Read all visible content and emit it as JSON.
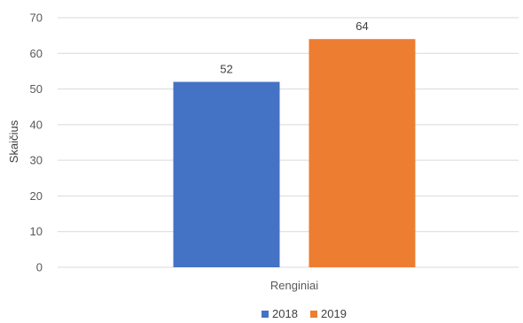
{
  "chart_data": {
    "type": "bar",
    "categories": [
      "Renginiai"
    ],
    "series": [
      {
        "name": "2018",
        "values": [
          52
        ],
        "color": "#4472C4"
      },
      {
        "name": "2019",
        "values": [
          64
        ],
        "color": "#ED7D31"
      }
    ],
    "xlabel": "",
    "ylabel": "Skaičius",
    "ylim": [
      0,
      70
    ],
    "yticks": [
      0,
      10,
      20,
      30,
      40,
      50,
      60,
      70
    ],
    "grid": true,
    "legend": "bottom",
    "data_labels": true,
    "gridline_color": "#D9D9D9"
  }
}
